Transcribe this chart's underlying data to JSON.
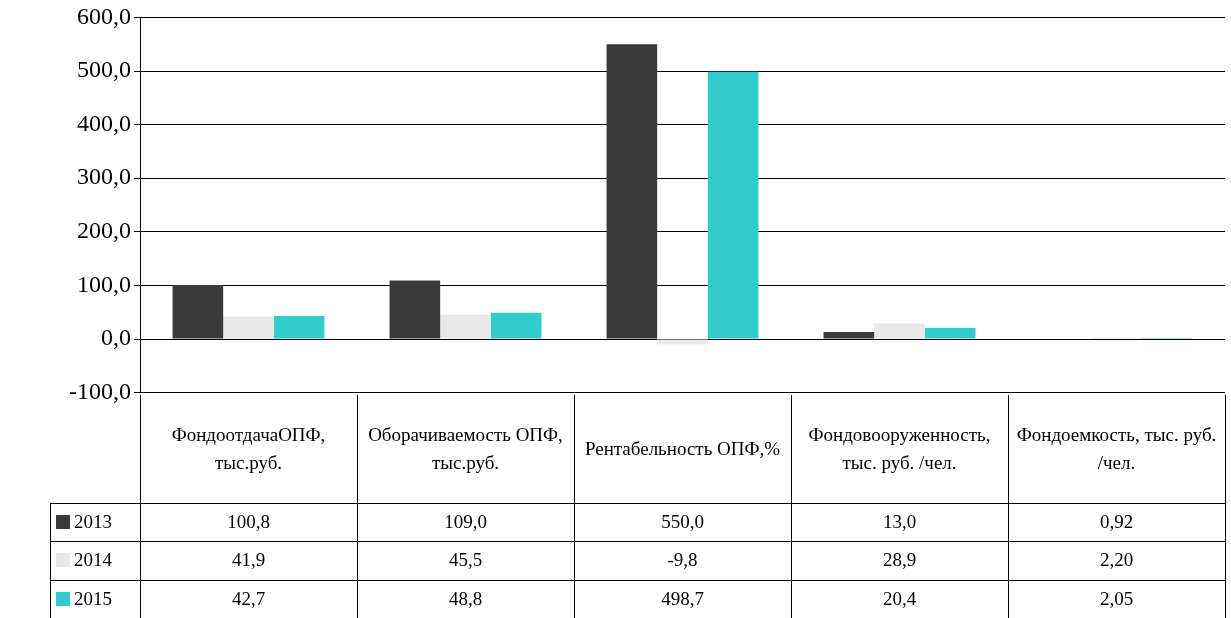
{
  "chart_data": {
    "type": "bar",
    "categories": [
      "ФондоотдачаОПФ, тыс.руб.",
      "Оборачиваемость ОПФ, тыс.руб.",
      "Рентабельность ОПФ,%",
      "Фондовооруженность, тыс. руб. /чел.",
      "Фондоемкость, тыс. руб. /чел."
    ],
    "series": [
      {
        "name": "2013",
        "color": "#3a3a3a",
        "values": [
          100.8,
          109.0,
          550.0,
          13.0,
          0.92
        ],
        "value_labels": [
          "100,8",
          "109,0",
          "550,0",
          "13,0",
          "0,92"
        ]
      },
      {
        "name": "2014",
        "color": "#e8e8e8",
        "values": [
          41.9,
          45.5,
          -9.8,
          28.9,
          2.2
        ],
        "value_labels": [
          "41,9",
          "45,5",
          "-9,8",
          "28,9",
          "2,20"
        ]
      },
      {
        "name": "2015",
        "color": "#33cccc",
        "values": [
          42.7,
          48.8,
          498.7,
          20.4,
          2.05
        ],
        "value_labels": [
          "42,7",
          "48,8",
          "498,7",
          "20,4",
          "2,05"
        ]
      }
    ],
    "ylim": [
      -100,
      600
    ],
    "yticks": [
      {
        "value": -100,
        "label": "-100,0"
      },
      {
        "value": 0,
        "label": "0,0"
      },
      {
        "value": 100,
        "label": "100,0"
      },
      {
        "value": 200,
        "label": "200,0"
      },
      {
        "value": 300,
        "label": "300,0"
      },
      {
        "value": 400,
        "label": "400,0"
      },
      {
        "value": 500,
        "label": "500,0"
      },
      {
        "value": 600,
        "label": "600,0"
      }
    ],
    "grid": "y",
    "legend": "bottom left"
  }
}
